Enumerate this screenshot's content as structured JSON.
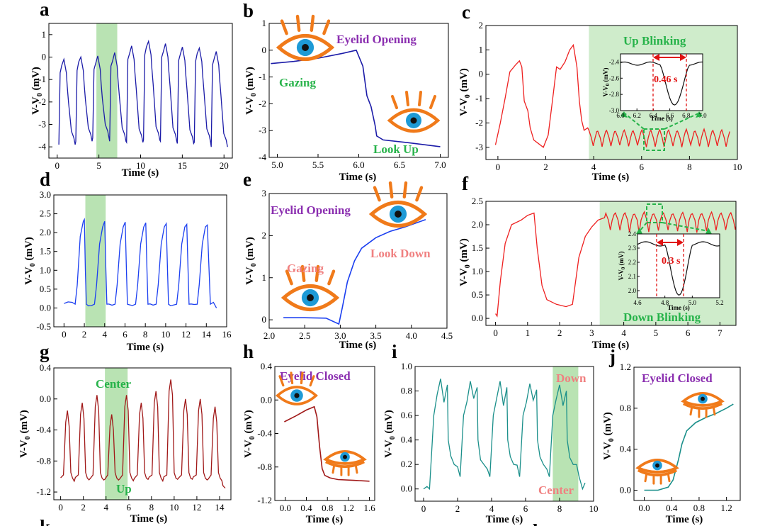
{
  "colors": {
    "navy": "#1c1ca8",
    "blue": "#1b3ff0",
    "red": "#ee2020",
    "darkred": "#a01818",
    "teal": "#1a8f8a",
    "green_band": "#a8dca0",
    "green_text": "#27b34a",
    "purple_text": "#8b2fb0",
    "pink_text": "#f08080",
    "eye_orange": "#f07a1a",
    "eye_blue": "#1e9ad6"
  },
  "icons": [
    "eye-open-icon",
    "eye-closed-icon"
  ],
  "chart_data": [
    {
      "id": "a",
      "panel_label": "a",
      "type": "line",
      "color": "#1c1ca8",
      "xlabel": "Time (s)",
      "ylabel": "V-V0 (mV)",
      "xlim": [
        -1,
        21
      ],
      "ylim": [
        -4.5,
        1.5
      ],
      "xticks": [
        "0",
        "5",
        "10",
        "15",
        "20"
      ],
      "yticks": [
        "-4",
        "-3",
        "-2",
        "-1",
        "0",
        "1"
      ],
      "highlight": [
        4.7,
        7.2
      ],
      "signal": "blinks",
      "period": 2.03,
      "start": 0.2,
      "low": -3.9,
      "high": -0.1
    },
    {
      "id": "b",
      "panel_label": "b",
      "type": "line",
      "color": "#1c1ca8",
      "xlabel": "Time (s)",
      "ylabel": "V-V0 (mV)",
      "xlim": [
        4.9,
        7.1
      ],
      "ylim": [
        -4,
        1
      ],
      "xticks": [
        "5.0",
        "5.5",
        "6.0",
        "6.5",
        "7.0"
      ],
      "yticks": [
        "-4",
        "-3",
        "-2",
        "-1",
        "0",
        "1"
      ],
      "x": [
        4.92,
        5.2,
        5.5,
        5.8,
        5.97,
        6.05,
        6.1,
        6.15,
        6.2,
        6.22,
        6.3,
        6.6,
        7.0
      ],
      "y": [
        -0.5,
        -0.42,
        -0.3,
        -0.12,
        0,
        -0.6,
        -1.7,
        -2.1,
        -2.8,
        -3.2,
        -3.35,
        -3.45,
        -3.6
      ],
      "annotations": [
        {
          "text": "Eyelid Opening",
          "color": "#8b2fb0"
        },
        {
          "text": "Gazing",
          "color": "#27b34a"
        },
        {
          "text": "Look Up",
          "color": "#27b34a"
        }
      ]
    },
    {
      "id": "c",
      "panel_label": "c",
      "type": "line",
      "color": "#ee2020",
      "xlabel": "Time (s)",
      "ylabel": "V-V0 (mV)",
      "xlim": [
        -0.5,
        10
      ],
      "ylim": [
        -3.5,
        2
      ],
      "xticks": [
        "0",
        "2",
        "4",
        "6",
        "8",
        "10"
      ],
      "yticks": [
        "-3",
        "-2",
        "-1",
        "0",
        "1",
        "2"
      ],
      "highlight": [
        3.8,
        10
      ],
      "signal": "c",
      "annotations": [
        {
          "text": "Up Blinking",
          "color": "#27b34a"
        }
      ],
      "inset": {
        "xlim": [
          6.0,
          7.0
        ],
        "ylim": [
          -3.0,
          -2.3
        ],
        "xticks": [
          "6.0",
          "6.2",
          "6.4",
          "6.6",
          "6.8",
          "7.0"
        ],
        "yticks": [
          "-3.0",
          "-2.8",
          "-2.6",
          "-2.4"
        ],
        "xlabel": "Time (s)",
        "ylabel": "V-V0 (mV)",
        "duration": "0.46 s"
      }
    },
    {
      "id": "d",
      "panel_label": "d",
      "type": "line",
      "color": "#1b3ff0",
      "xlabel": "Time (s)",
      "ylabel": "V-V0 (mV)",
      "xlim": [
        -1,
        16
      ],
      "ylim": [
        -0.5,
        3
      ],
      "xticks": [
        "0",
        "2",
        "4",
        "6",
        "8",
        "10",
        "12",
        "14",
        "16"
      ],
      "yticks": [
        "-0.5",
        "0.0",
        "0.5",
        "1.0",
        "1.5",
        "2.0",
        "2.5",
        "3.0"
      ],
      "highlight": [
        2.1,
        4.1
      ],
      "signal": "d"
    },
    {
      "id": "e",
      "panel_label": "e",
      "type": "line",
      "color": "#1b3ff0",
      "xlabel": "Time (s)",
      "ylabel": "V-V0 (mV)",
      "xlim": [
        2.0,
        4.5
      ],
      "ylim": [
        -0.2,
        3
      ],
      "xticks": [
        "2.0",
        "2.5",
        "3.0",
        "3.5",
        "4.0",
        "4.5"
      ],
      "yticks": [
        "0",
        "1",
        "2",
        "3"
      ],
      "x": [
        2.2,
        2.5,
        2.8,
        2.98,
        3.03,
        3.1,
        3.2,
        3.3,
        3.5,
        3.7,
        3.9,
        4.2
      ],
      "y": [
        0.05,
        0.05,
        0.04,
        -0.1,
        0.3,
        0.9,
        1.4,
        1.7,
        1.95,
        2.1,
        2.2,
        2.38
      ],
      "annotations": [
        {
          "text": "Eyelid Opening",
          "color": "#8b2fb0"
        },
        {
          "text": "Gazing",
          "color": "#f08080"
        },
        {
          "text": "Look Down",
          "color": "#f08080"
        }
      ]
    },
    {
      "id": "f",
      "panel_label": "f",
      "type": "line",
      "color": "#ee2020",
      "xlabel": "Time (s)",
      "ylabel": "V-V0 (mV)",
      "xlim": [
        -0.3,
        7.5
      ],
      "ylim": [
        -0.15,
        2.5
      ],
      "xticks": [
        "0",
        "1",
        "2",
        "3",
        "4",
        "5",
        "6",
        "7"
      ],
      "yticks": [
        "0.0",
        "0.5",
        "1.0",
        "1.5",
        "2.0",
        "2.5"
      ],
      "highlight": [
        3.25,
        7.5
      ],
      "signal": "f",
      "annotations": [
        {
          "text": "Down Blinking",
          "color": "#27b34a"
        }
      ],
      "inset": {
        "xlim": [
          4.6,
          5.2
        ],
        "ylim": [
          1.95,
          2.4
        ],
        "xticks": [
          "4.6",
          "4.8",
          "5.0",
          "5.2"
        ],
        "yticks": [
          "2.0",
          "2.1",
          "2.2",
          "2.3",
          "2.4"
        ],
        "xlabel": "Time (s)",
        "ylabel": "V-V0 (mV)",
        "duration": "0.3 s"
      }
    },
    {
      "id": "g",
      "panel_label": "g",
      "type": "line",
      "color": "#a01818",
      "xlabel": "Time (s)",
      "ylabel": "V-V0 (mV)",
      "xlim": [
        -0.6,
        15
      ],
      "ylim": [
        -1.3,
        0.4
      ],
      "xticks": [
        "0",
        "2",
        "4",
        "6",
        "8",
        "10",
        "12",
        "14"
      ],
      "yticks": [
        "-1.2",
        "-0.8",
        "-0.4",
        "0.0",
        "0.4"
      ],
      "highlight": [
        3.9,
        5.9
      ],
      "signal": "g",
      "annotations": [
        {
          "text": "Center",
          "color": "#27b34a"
        },
        {
          "text": "Up",
          "color": "#27b34a"
        }
      ]
    },
    {
      "id": "h",
      "panel_label": "h",
      "type": "line",
      "color": "#a01818",
      "xlabel": "Time (s)",
      "ylabel": "V-V0 (mV)",
      "xlim": [
        -0.2,
        1.7
      ],
      "ylim": [
        -1.2,
        0.4
      ],
      "xticks": [
        "0.0",
        "0.4",
        "0.8",
        "1.2",
        "1.6"
      ],
      "yticks": [
        "-1.2",
        "-0.8",
        "-0.4",
        "0.0",
        "0.4"
      ],
      "x": [
        -0.02,
        0.2,
        0.4,
        0.55,
        0.6,
        0.65,
        0.7,
        0.75,
        0.85,
        1.0,
        1.3,
        1.6
      ],
      "y": [
        -0.26,
        -0.19,
        -0.12,
        -0.08,
        -0.2,
        -0.55,
        -0.82,
        -0.9,
        -0.93,
        -0.95,
        -0.96,
        -0.97
      ],
      "annotations": [
        {
          "text": "Eyelid Closed",
          "color": "#8b2fb0"
        }
      ]
    },
    {
      "id": "i",
      "panel_label": "i",
      "type": "line",
      "color": "#1a8f8a",
      "xlabel": "Time (s)",
      "ylabel": "V-V0 (mV)",
      "xlim": [
        -0.5,
        10
      ],
      "ylim": [
        -0.1,
        1
      ],
      "xticks": [
        "0",
        "2",
        "4",
        "6",
        "8",
        "10"
      ],
      "yticks": [
        "0.0",
        "0.2",
        "0.4",
        "0.6",
        "0.8",
        "1.0"
      ],
      "highlight": [
        7.6,
        9.1
      ],
      "signal": "i",
      "annotations": [
        {
          "text": "Down",
          "color": "#f08080"
        },
        {
          "text": "Center",
          "color": "#f08080"
        }
      ]
    },
    {
      "id": "j",
      "panel_label": "j",
      "type": "line",
      "color": "#1a8f8a",
      "xlabel": "Time (s)",
      "ylabel": "V-V0 (mV)",
      "xlim": [
        -0.15,
        1.4
      ],
      "ylim": [
        -0.1,
        1.2
      ],
      "xticks": [
        "0.0",
        "0.4",
        "0.8",
        "1.2"
      ],
      "yticks": [
        "0.0",
        "0.4",
        "0.8",
        "1.2"
      ],
      "x": [
        0.0,
        0.2,
        0.35,
        0.42,
        0.5,
        0.55,
        0.62,
        0.75,
        0.9,
        1.05,
        1.2,
        1.3
      ],
      "y": [
        0.0,
        0.0,
        0.03,
        0.1,
        0.3,
        0.45,
        0.58,
        0.66,
        0.71,
        0.75,
        0.8,
        0.84
      ],
      "annotations": [
        {
          "text": "Eyelid Closed",
          "color": "#8b2fb0"
        }
      ]
    }
  ],
  "footer_labels": [
    "k",
    "l"
  ]
}
